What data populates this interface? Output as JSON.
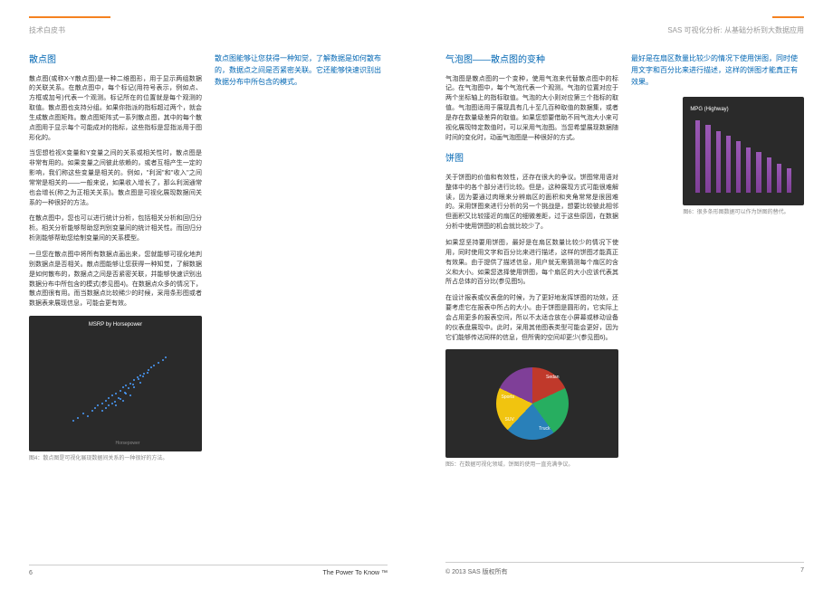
{
  "header": {
    "left": "技术白皮书",
    "right": "SAS 可视化分析: 从基础分析到大数据应用"
  },
  "left_page": {
    "title": "散点图",
    "p1": "散点图(或称X-Y散点图)是一种二维图形，用于显示两组数据的关联关系。在散点图中，每个标记(用符号表示，例如点、方框或加号)代表一个观测。标记所在的位置就是每个观测的取值。散点图也支持分组。如果你指派的指标超过两个，就会生成散点图矩阵。散点图矩阵式一系列散点图，其中的每个散点图用于显示每个可能成对的指标，这些指标是您指派用于图形化的。",
    "p2": "当您想检视X变量和Y变量之间的关系或相关性时，散点图是非常有用的。如果变量之间彼此依赖的，或者互相产生一定的影响，我们称这些变量是相关的。例如，\"利润\"和\"收入\"之间常常是相关的——一般来说，如果收入增长了，那么利润通常也会增长(称之为正相关关系)。散点图是可视化展现数据间关系的一种很好的方法。",
    "p3": "在散点图中，您也可以进行统计分析，包括相关分析和回归分析。相关分析能够帮助您判别变量间的统计相关性。而回归分析则能够帮助您绘制变量间的关系模型。",
    "p4": "一旦您在散点图中将所有数据点画出来，您就能够可视化地判别数据点是否相关。散点图能够让您获得一种知觉，了解数据是如何散布的，数据点之间是否紧密关联，并能够快速识别出数据分布中所包含的模式(参见图4)。在数据点众多的情况下，散点图很有用。而当数据点比较稀少的时候，采用条形图或者数据表来展现信息，可能会更有效。",
    "callout": "散点图能够让您获得一种知觉，了解数据是如何散布的，数据点之间是否紧密关联。它还能够快速识别出数据分布中所包含的模式。",
    "scatter": {
      "title": "MSRP by Horsepower",
      "caption": "图4：散点图是可视化展现数据间关系的一种很好的方法。",
      "dots": [
        [
          15,
          85
        ],
        [
          18,
          82
        ],
        [
          22,
          78
        ],
        [
          25,
          80
        ],
        [
          28,
          75
        ],
        [
          30,
          72
        ],
        [
          32,
          70
        ],
        [
          35,
          68
        ],
        [
          38,
          65
        ],
        [
          40,
          62
        ],
        [
          42,
          60
        ],
        [
          45,
          58
        ],
        [
          48,
          55
        ],
        [
          50,
          52
        ],
        [
          52,
          50
        ],
        [
          55,
          48
        ],
        [
          58,
          45
        ],
        [
          60,
          42
        ],
        [
          62,
          40
        ],
        [
          65,
          38
        ],
        [
          68,
          35
        ],
        [
          70,
          32
        ],
        [
          72,
          30
        ],
        [
          75,
          28
        ],
        [
          78,
          25
        ],
        [
          80,
          22
        ],
        [
          45,
          70
        ],
        [
          50,
          65
        ],
        [
          55,
          60
        ],
        [
          42,
          68
        ],
        [
          38,
          72
        ],
        [
          48,
          63
        ],
        [
          52,
          58
        ],
        [
          58,
          52
        ],
        [
          62,
          47
        ],
        [
          35,
          75
        ],
        [
          40,
          70
        ],
        [
          44,
          66
        ],
        [
          47,
          62
        ],
        [
          51,
          57
        ],
        [
          54,
          53
        ],
        [
          57,
          49
        ],
        [
          61,
          44
        ],
        [
          64,
          41
        ],
        [
          67,
          37
        ]
      ]
    }
  },
  "right_page": {
    "title1": "气泡图——散点图的变种",
    "p1_1": "气泡图是散点图的一个变种，使用气泡来代替散点图中的标记。在气泡图中，每个气泡代表一个观测。气泡的位置对应于两个坐标轴上的指标取值。气泡的大小则对应第三个指标的取值。气泡图适用于展现具有几十至几百种取值的数据集，或者是存在数量级差异的取值。如果您想要借助不同气泡大小来可视化展现特定数值时，可以采用气泡图。当您希望展现数据随时间的变化时，动画气泡图是一种很好的方式。",
    "title2": "饼图",
    "p2_1": "关于饼图的价值和有效性，还存在很大的争议。饼图常用语对整体中的各个部分进行比较。但是，这种展现方式可能很难解读，因为要通过肉眼来分辨扇区的面积和夹角常常是很困难的。采用饼图来进行分析的另一个挑战是，想要比较彼此相邻但面积又比较接近的扇区的细微差距，过于这些原因，在数据分析中使用饼图的机会就比较少了。",
    "p2_2": "如果您坚持要用饼图，最好是在扇区数量比较少的情况下使用，同时使用文字和百分比来进行描述，这样的饼图才能真正有效果。由于提供了描述信息，用户就无需猜测每个扇区的含义和大小。如果您选择使用饼图，每个扇区的大小应该代表其所占总体的百分比(参见图5)。",
    "p2_3": "在设计报表或仪表盘的时候，为了更好地发挥饼图的功效，还要考虑它在报表中所占的大小。由于饼图是圆形的，它实际上会占用更多的报表空间，所以不太适合放在小屏幕或移动设备的仪表盘展现中。此时，采用其他图表类型可能会更好，因为它们能够传达同样的信息，但所需的空间却更少(参见图6)。",
    "callout": "最好是在扇区数量比较少的情况下使用饼图，同时使用文字和百分比来进行描述，这样的饼图才能真正有效果。",
    "pie": {
      "caption": "图5：在数据可视化领域，饼图的使用一直充满争议。",
      "slices": [
        {
          "label": "Sedan",
          "pct": "15.0%",
          "color": "#c0392b"
        },
        {
          "label": "Sports",
          "pct": "11.4%",
          "color": "#27ae60"
        },
        {
          "label": "SUV",
          "pct": "11.2%",
          "color": "#2980b9"
        },
        {
          "label": "Truck",
          "pct": "5.6%",
          "color": "#f1c40f"
        },
        {
          "label": "Wagon",
          "pct": "7.0%",
          "color": "#7f3f98"
        }
      ]
    },
    "bar": {
      "title": "MPG (Highway)",
      "caption": "图6：很多条形图数据可以作为饼图的替代。",
      "values": [
        45,
        42,
        38,
        35,
        32,
        28,
        25,
        22,
        18,
        15
      ],
      "color": "#8e44ad"
    }
  },
  "footer": {
    "page_left": "6",
    "page_right": "7",
    "tagline": "The Power To Know ™",
    "copyright": "© 2013 SAS  版权所有"
  }
}
